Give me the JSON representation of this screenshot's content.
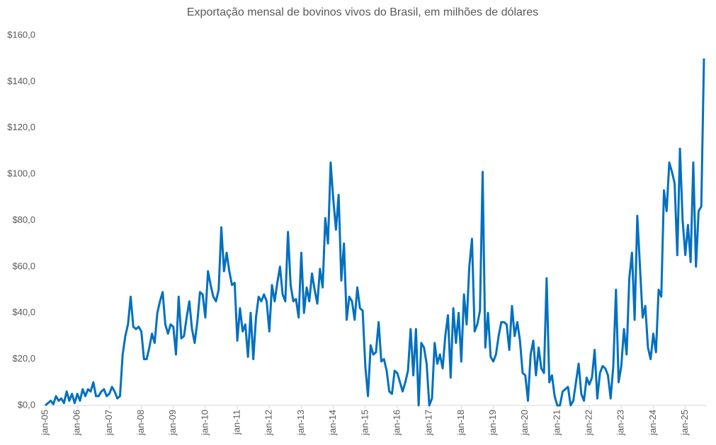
{
  "chart_data": {
    "type": "line",
    "title": "Exportação mensal de bovinos vivos do Brasil, em milhões de dólares",
    "categories": [
      "jan-05",
      null,
      null,
      null,
      null,
      null,
      null,
      null,
      null,
      null,
      null,
      null,
      "jan-06",
      null,
      null,
      null,
      null,
      null,
      null,
      null,
      null,
      null,
      null,
      null,
      "jan-07",
      null,
      null,
      null,
      null,
      null,
      null,
      null,
      null,
      null,
      null,
      null,
      "jan-08",
      null,
      null,
      null,
      null,
      null,
      null,
      null,
      null,
      null,
      null,
      null,
      "jan-09",
      null,
      null,
      null,
      null,
      null,
      null,
      null,
      null,
      null,
      null,
      null,
      "jan-10",
      null,
      null,
      null,
      null,
      null,
      null,
      null,
      null,
      null,
      null,
      null,
      "jan-11",
      null,
      null,
      null,
      null,
      null,
      null,
      null,
      null,
      null,
      null,
      null,
      "jan-12",
      null,
      null,
      null,
      null,
      null,
      null,
      null,
      null,
      null,
      null,
      null,
      "jan-13",
      null,
      null,
      null,
      null,
      null,
      null,
      null,
      null,
      null,
      null,
      null,
      "jan-14",
      null,
      null,
      null,
      null,
      null,
      null,
      null,
      null,
      null,
      null,
      null,
      "jan-15",
      null,
      null,
      null,
      null,
      null,
      null,
      null,
      null,
      null,
      null,
      null,
      "jan-16",
      null,
      null,
      null,
      null,
      null,
      null,
      null,
      null,
      null,
      null,
      null,
      "jan-17",
      null,
      null,
      null,
      null,
      null,
      null,
      null,
      null,
      null,
      null,
      null,
      "jan-18",
      null,
      null,
      null,
      null,
      null,
      null,
      null,
      null,
      null,
      null,
      null,
      "jan-19",
      null,
      null,
      null,
      null,
      null,
      null,
      null,
      null,
      null,
      null,
      null,
      "jan-20",
      null,
      null,
      null,
      null,
      null,
      null,
      null,
      null,
      null,
      null,
      null,
      "jan-21",
      null,
      null,
      null,
      null,
      null,
      null,
      null,
      null,
      null,
      null,
      null,
      "jan-22",
      null,
      null,
      null,
      null,
      null,
      null,
      null,
      null,
      null,
      null,
      null,
      "jan-23",
      null,
      null,
      null,
      null,
      null,
      null,
      null,
      null,
      null,
      null,
      null,
      "jan-24",
      null,
      null,
      null,
      null,
      null,
      null,
      null,
      null,
      null,
      null,
      null,
      "jan-25",
      null,
      null,
      null,
      null,
      null,
      null,
      null
    ],
    "series": [
      {
        "color": "#0070c0",
        "values": [
          0,
          1,
          2,
          0.5,
          4,
          2,
          3,
          1,
          6,
          2,
          5,
          1,
          5,
          2,
          7,
          4,
          7,
          6,
          10,
          4,
          4,
          6,
          7,
          4,
          5,
          8,
          6,
          3,
          4,
          22,
          30,
          35,
          47,
          34,
          33,
          34,
          32,
          20,
          20,
          25,
          31,
          27,
          40,
          45,
          49,
          35,
          31,
          35,
          34,
          22,
          47,
          29,
          30,
          38,
          45,
          33,
          27,
          36,
          49,
          48,
          38,
          58,
          52,
          47,
          45,
          50,
          77,
          58,
          66,
          58,
          52,
          53,
          28,
          42,
          32,
          35,
          21,
          40,
          20,
          38,
          47,
          45,
          48,
          45,
          32,
          52,
          45,
          53,
          60,
          48,
          45,
          75,
          52,
          45,
          46,
          38,
          66,
          40,
          51,
          45,
          57,
          50,
          44,
          59,
          51,
          81,
          70,
          105,
          89,
          76,
          91,
          54,
          70,
          37,
          47,
          45,
          37,
          51,
          42,
          41,
          17,
          4,
          26,
          22,
          23,
          36,
          19,
          20,
          15,
          6,
          5,
          15,
          14,
          10,
          6,
          10,
          15,
          33,
          13,
          33,
          0,
          27,
          25,
          18,
          0,
          3,
          27,
          18,
          22,
          16,
          30,
          39,
          12,
          42,
          27,
          40,
          19,
          48,
          35,
          60,
          72,
          32,
          35,
          41,
          101,
          25,
          40,
          21,
          19,
          22,
          30,
          36,
          36,
          35,
          24,
          43,
          30,
          36,
          28,
          14,
          13,
          2,
          22,
          28,
          13,
          25,
          16,
          14,
          55,
          10,
          13,
          4,
          0,
          0,
          6,
          7,
          8,
          0,
          2,
          10,
          18,
          5,
          2,
          12,
          9,
          12,
          24,
          3,
          14,
          17,
          16,
          13,
          3,
          17,
          50,
          10,
          17,
          33,
          22,
          55,
          66,
          37,
          82,
          60,
          38,
          43,
          25,
          20,
          31,
          23,
          50,
          47,
          93,
          84,
          105,
          101,
          96,
          65,
          111,
          80,
          65,
          78,
          62,
          105,
          60,
          84,
          86,
          150
        ]
      }
    ],
    "ylim": [
      0,
      160
    ],
    "yticks": [
      {
        "value": 0,
        "label": "$0,0"
      },
      {
        "value": 20,
        "label": "$20,0"
      },
      {
        "value": 40,
        "label": "$40,0"
      },
      {
        "value": 60,
        "label": "$60,0"
      },
      {
        "value": 80,
        "label": "$80,0"
      },
      {
        "value": 100,
        "label": "$100,0"
      },
      {
        "value": 120,
        "label": "$120,0"
      },
      {
        "value": 140,
        "label": "$140,0"
      },
      {
        "value": 160,
        "label": "$160,0"
      }
    ]
  }
}
